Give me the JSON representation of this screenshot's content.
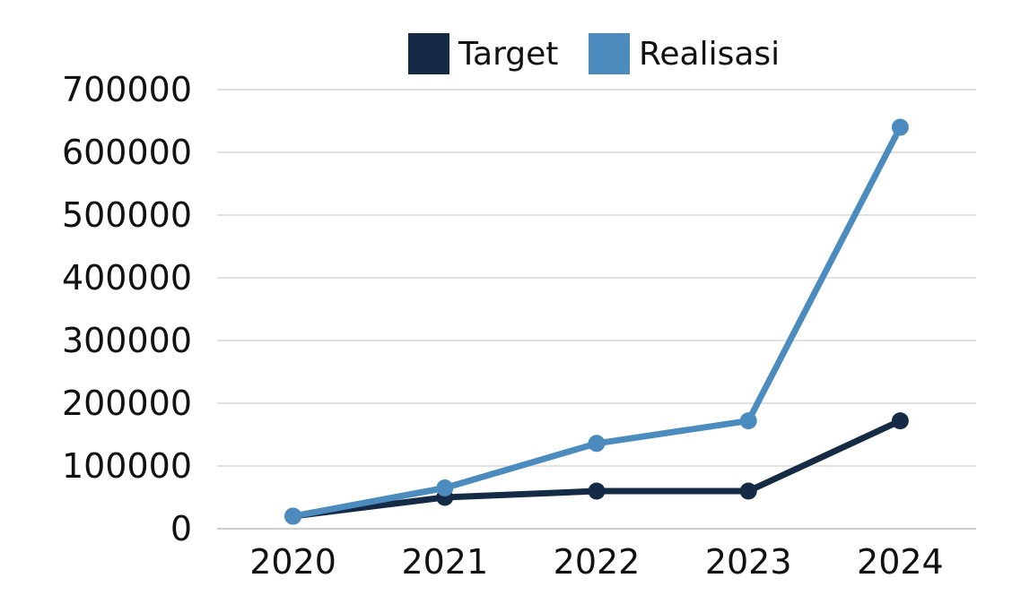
{
  "chart_data": {
    "type": "line",
    "x": [
      "2020",
      "2021",
      "2022",
      "2023",
      "2024"
    ],
    "series": [
      {
        "name": "Target",
        "color": "#152b45",
        "values": [
          20000,
          50000,
          60000,
          60000,
          172000
        ]
      },
      {
        "name": "Realisasi",
        "color": "#4b8bbe",
        "values": [
          20000,
          65000,
          136000,
          172000,
          640000
        ]
      }
    ],
    "ylim": [
      0,
      700000
    ],
    "yticks": [
      0,
      100000,
      200000,
      300000,
      400000,
      500000,
      600000,
      700000
    ],
    "grid": true,
    "legend": "top-center",
    "title": "",
    "xlabel": "",
    "ylabel": ""
  }
}
